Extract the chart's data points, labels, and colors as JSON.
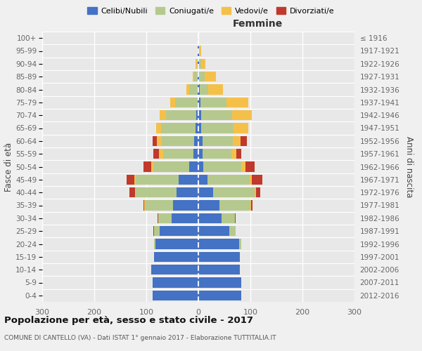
{
  "age_groups": [
    "0-4",
    "5-9",
    "10-14",
    "15-19",
    "20-24",
    "25-29",
    "30-34",
    "35-39",
    "40-44",
    "45-49",
    "50-54",
    "55-59",
    "60-64",
    "65-69",
    "70-74",
    "75-79",
    "80-84",
    "85-89",
    "90-94",
    "95-99",
    "100+"
  ],
  "birth_years": [
    "2012-2016",
    "2007-2011",
    "2002-2006",
    "1997-2001",
    "1992-1996",
    "1987-1991",
    "1982-1986",
    "1977-1981",
    "1972-1976",
    "1967-1971",
    "1962-1966",
    "1957-1961",
    "1952-1956",
    "1947-1951",
    "1942-1946",
    "1937-1941",
    "1932-1936",
    "1927-1931",
    "1922-1926",
    "1917-1921",
    "≤ 1916"
  ],
  "males": {
    "celibi": [
      88,
      88,
      90,
      85,
      82,
      75,
      52,
      48,
      42,
      38,
      18,
      10,
      8,
      6,
      4,
      2,
      2,
      1,
      1,
      1,
      0
    ],
    "coniugati": [
      0,
      0,
      0,
      0,
      3,
      10,
      25,
      55,
      78,
      82,
      68,
      58,
      62,
      65,
      58,
      42,
      16,
      7,
      2,
      1,
      0
    ],
    "vedovi": [
      0,
      0,
      0,
      0,
      0,
      0,
      0,
      1,
      2,
      3,
      5,
      8,
      10,
      10,
      12,
      10,
      5,
      3,
      2,
      0,
      0
    ],
    "divorziati": [
      0,
      0,
      0,
      0,
      0,
      2,
      2,
      2,
      10,
      15,
      15,
      10,
      8,
      0,
      0,
      0,
      0,
      0,
      0,
      0,
      0
    ]
  },
  "females": {
    "nubili": [
      82,
      82,
      80,
      80,
      78,
      60,
      45,
      40,
      28,
      18,
      10,
      8,
      8,
      6,
      5,
      4,
      3,
      2,
      1,
      1,
      0
    ],
    "coniugate": [
      0,
      0,
      0,
      0,
      5,
      12,
      25,
      60,
      80,
      80,
      72,
      55,
      58,
      62,
      60,
      50,
      16,
      10,
      4,
      1,
      0
    ],
    "vedove": [
      0,
      0,
      0,
      0,
      0,
      0,
      0,
      2,
      3,
      5,
      8,
      10,
      15,
      28,
      38,
      42,
      28,
      22,
      8,
      3,
      0
    ],
    "divorziate": [
      0,
      0,
      0,
      0,
      0,
      0,
      2,
      2,
      8,
      20,
      18,
      10,
      12,
      0,
      0,
      0,
      0,
      0,
      0,
      0,
      0
    ]
  },
  "colors": {
    "celibi_nubili": "#4472C4",
    "coniugati_e": "#B5C98E",
    "vedovi_e": "#F5C04A",
    "divorziati_e": "#C0392B"
  },
  "title": "Popolazione per età, sesso e stato civile - 2017",
  "subtitle": "COMUNE DI CANTELLO (VA) - Dati ISTAT 1° gennaio 2017 - Elaborazione TUTTITALIA.IT",
  "xlabel_right": "Femmine",
  "ylabel_left": "Fasce di età",
  "ylabel_right": "Anni di nascita",
  "xlim": 300,
  "legend_labels": [
    "Celibi/Nubili",
    "Coniugati/e",
    "Vedovi/e",
    "Divorziati/e"
  ],
  "bg_color": "#f0f0f0",
  "plot_bg_color": "#e8e8e8",
  "grid_color": "#ffffff"
}
